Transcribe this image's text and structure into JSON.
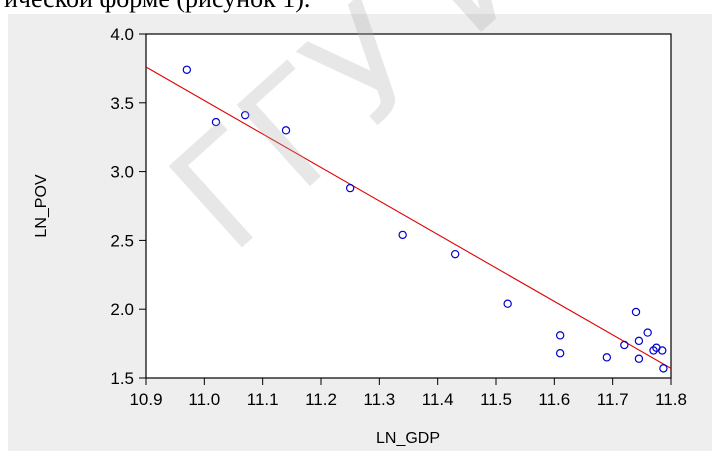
{
  "document": {
    "fragment_text": "ической форме (рисунок 1).",
    "watermark_text": "ГГУ ИМ. Ф"
  },
  "colors": {
    "background": "#eeeeee",
    "plot_background": "#ffffff",
    "points": "#0000cc",
    "regression_line": "#e00000"
  },
  "chart_data": {
    "type": "scatter",
    "title": "",
    "xlabel": "LN_GDP",
    "ylabel": "LN_POV",
    "xlim": [
      10.9,
      11.8
    ],
    "ylim": [
      1.5,
      4.0
    ],
    "xticks": [
      "10.9",
      "11.0",
      "11.1",
      "11.2",
      "11.3",
      "11.4",
      "11.5",
      "11.6",
      "11.7",
      "11.8"
    ],
    "yticks": [
      "1.5",
      "2.0",
      "2.5",
      "3.0",
      "3.5",
      "4.0"
    ],
    "grid": false,
    "points": [
      {
        "x": 10.97,
        "y": 3.74
      },
      {
        "x": 11.02,
        "y": 3.36
      },
      {
        "x": 11.07,
        "y": 3.41
      },
      {
        "x": 11.14,
        "y": 3.3
      },
      {
        "x": 11.25,
        "y": 2.88
      },
      {
        "x": 11.34,
        "y": 2.54
      },
      {
        "x": 11.43,
        "y": 2.4
      },
      {
        "x": 11.52,
        "y": 2.04
      },
      {
        "x": 11.61,
        "y": 1.81
      },
      {
        "x": 11.61,
        "y": 1.68
      },
      {
        "x": 11.69,
        "y": 1.65
      },
      {
        "x": 11.72,
        "y": 1.74
      },
      {
        "x": 11.74,
        "y": 1.98
      },
      {
        "x": 11.745,
        "y": 1.77
      },
      {
        "x": 11.745,
        "y": 1.64
      },
      {
        "x": 11.76,
        "y": 1.83
      },
      {
        "x": 11.77,
        "y": 1.7
      },
      {
        "x": 11.775,
        "y": 1.72
      },
      {
        "x": 11.785,
        "y": 1.7
      },
      {
        "x": 11.787,
        "y": 1.57
      }
    ],
    "fit_line": {
      "x": [
        10.9,
        11.8
      ],
      "y": [
        3.76,
        1.57
      ]
    }
  }
}
